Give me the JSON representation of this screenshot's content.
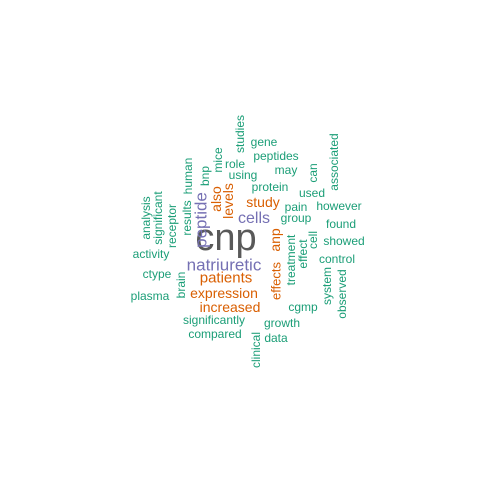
{
  "word_cloud": {
    "colors": {
      "top": "#595959",
      "high": "#7570b3",
      "mid": "#d95f02",
      "low": "#1b9e77"
    },
    "words": {
      "cnp": "cnp",
      "natriuretic": "natriuretic",
      "peptide": "peptide",
      "cells": "cells",
      "patients": "patients",
      "expression": "expression",
      "increased": "increased",
      "study": "study",
      "levels": "levels",
      "also": "also",
      "anp": "anp",
      "effects": "effects",
      "studies": "studies",
      "gene": "gene",
      "peptides": "peptides",
      "mice": "mice",
      "role": "role",
      "bnp": "bnp",
      "human": "human",
      "using": "using",
      "may": "may",
      "can": "can",
      "associated": "associated",
      "results": "results",
      "protein": "protein",
      "used": "used",
      "receptor": "receptor",
      "significant": "significant",
      "analysis": "analysis",
      "group": "group",
      "pain": "pain",
      "however": "however",
      "found": "found",
      "cell": "cell",
      "effect": "effect",
      "treatment": "treatment",
      "showed": "showed",
      "activity": "activity",
      "control": "control",
      "ctype": "ctype",
      "brain": "brain",
      "system": "system",
      "plasma": "plasma",
      "cgmp": "cgmp",
      "observed": "observed",
      "significantly": "significantly",
      "growth": "growth",
      "compared": "compared",
      "data": "data",
      "clinical": "clinical"
    }
  }
}
